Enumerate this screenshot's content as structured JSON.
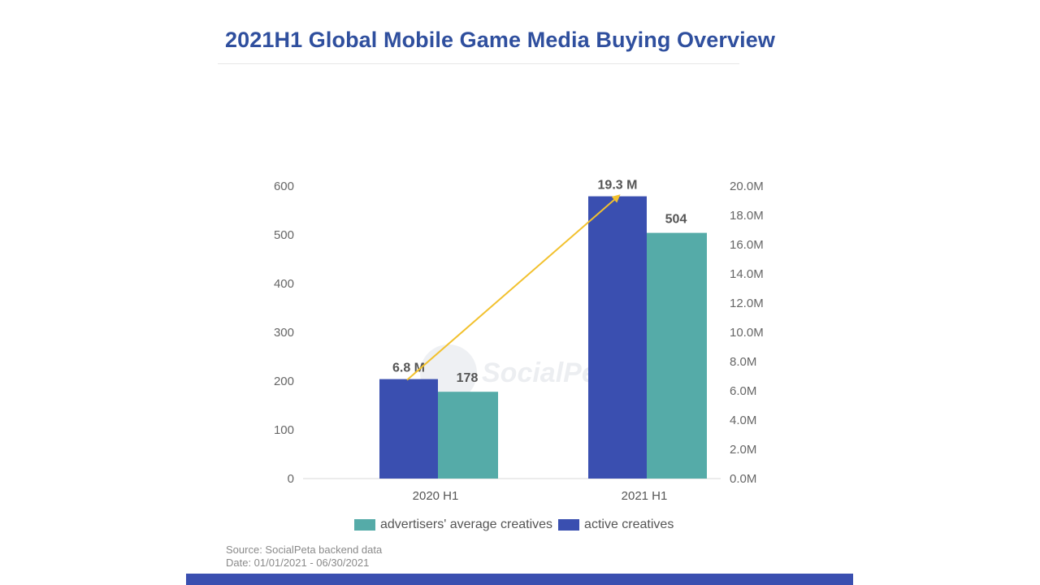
{
  "header": {
    "title": "2021H1 Global Mobile Game Media Buying Overview"
  },
  "chart_data": {
    "type": "bar",
    "categories": [
      "2020 H1",
      "2021 H1"
    ],
    "series": [
      {
        "name": "active creatives",
        "axis": "right",
        "values": [
          6.8,
          19.3
        ],
        "labels": [
          "6.8 M",
          "19.3 M"
        ],
        "color": "#3a4fb0"
      },
      {
        "name": "advertisers' average creatives",
        "axis": "left",
        "values": [
          178,
          504
        ],
        "labels": [
          "178",
          "504"
        ],
        "color": "#55aba8"
      }
    ],
    "y_left": {
      "ylim": [
        0,
        600
      ],
      "ticks": [
        "0",
        "100",
        "200",
        "300",
        "400",
        "500",
        "600"
      ]
    },
    "y_right": {
      "ylim": [
        0,
        20
      ],
      "unit": "M",
      "ticks": [
        "0.0M",
        "2.0M",
        "4.0M",
        "6.0M",
        "8.0M",
        "10.0M",
        "12.0M",
        "14.0M",
        "16.0M",
        "18.0M",
        "20.0M"
      ]
    },
    "trend_arrow": {
      "from": "active creatives 2020 H1",
      "to": "active creatives 2021 H1",
      "color": "#f2c12e"
    },
    "legend": {
      "placement": "bottom",
      "items": [
        "advertisers' average creatives",
        "active creatives"
      ]
    },
    "grid": false
  },
  "footer": {
    "source": "Source: SocialPeta backend data",
    "date": "Date: 01/01/2021 - 06/30/2021"
  },
  "watermark": {
    "text": "SocialPeta"
  }
}
